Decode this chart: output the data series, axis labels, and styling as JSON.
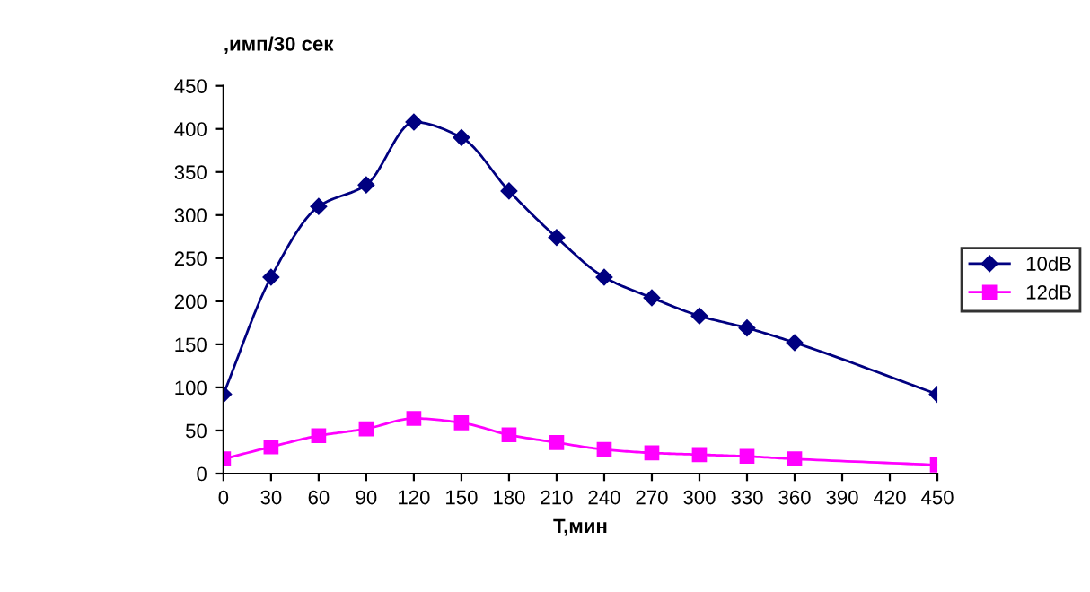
{
  "chart_data": {
    "type": "line",
    "ylabel": ",имп/30 сек",
    "xlabel": "T,мин",
    "x": [
      0,
      30,
      60,
      90,
      120,
      150,
      180,
      210,
      240,
      270,
      300,
      330,
      360,
      450
    ],
    "series": [
      {
        "name": "10dB",
        "color": "#000080",
        "marker": "diamond",
        "values": [
          92,
          228,
          310,
          335,
          408,
          390,
          328,
          274,
          228,
          204,
          183,
          169,
          152,
          92
        ]
      },
      {
        "name": "12dB",
        "color": "#ff00ff",
        "marker": "square",
        "values": [
          17,
          31,
          44,
          52,
          64,
          59,
          45,
          36,
          28,
          24,
          22,
          20,
          17,
          10
        ]
      }
    ],
    "xlim": [
      0,
      450
    ],
    "xticks": [
      0,
      30,
      60,
      90,
      120,
      150,
      180,
      210,
      240,
      270,
      300,
      330,
      360,
      390,
      420,
      450
    ],
    "ylim": [
      0,
      450
    ],
    "yticks": [
      0,
      50,
      100,
      150,
      200,
      250,
      300,
      350,
      400,
      450
    ],
    "grid": false,
    "legend": "right",
    "line_style": "solid"
  }
}
